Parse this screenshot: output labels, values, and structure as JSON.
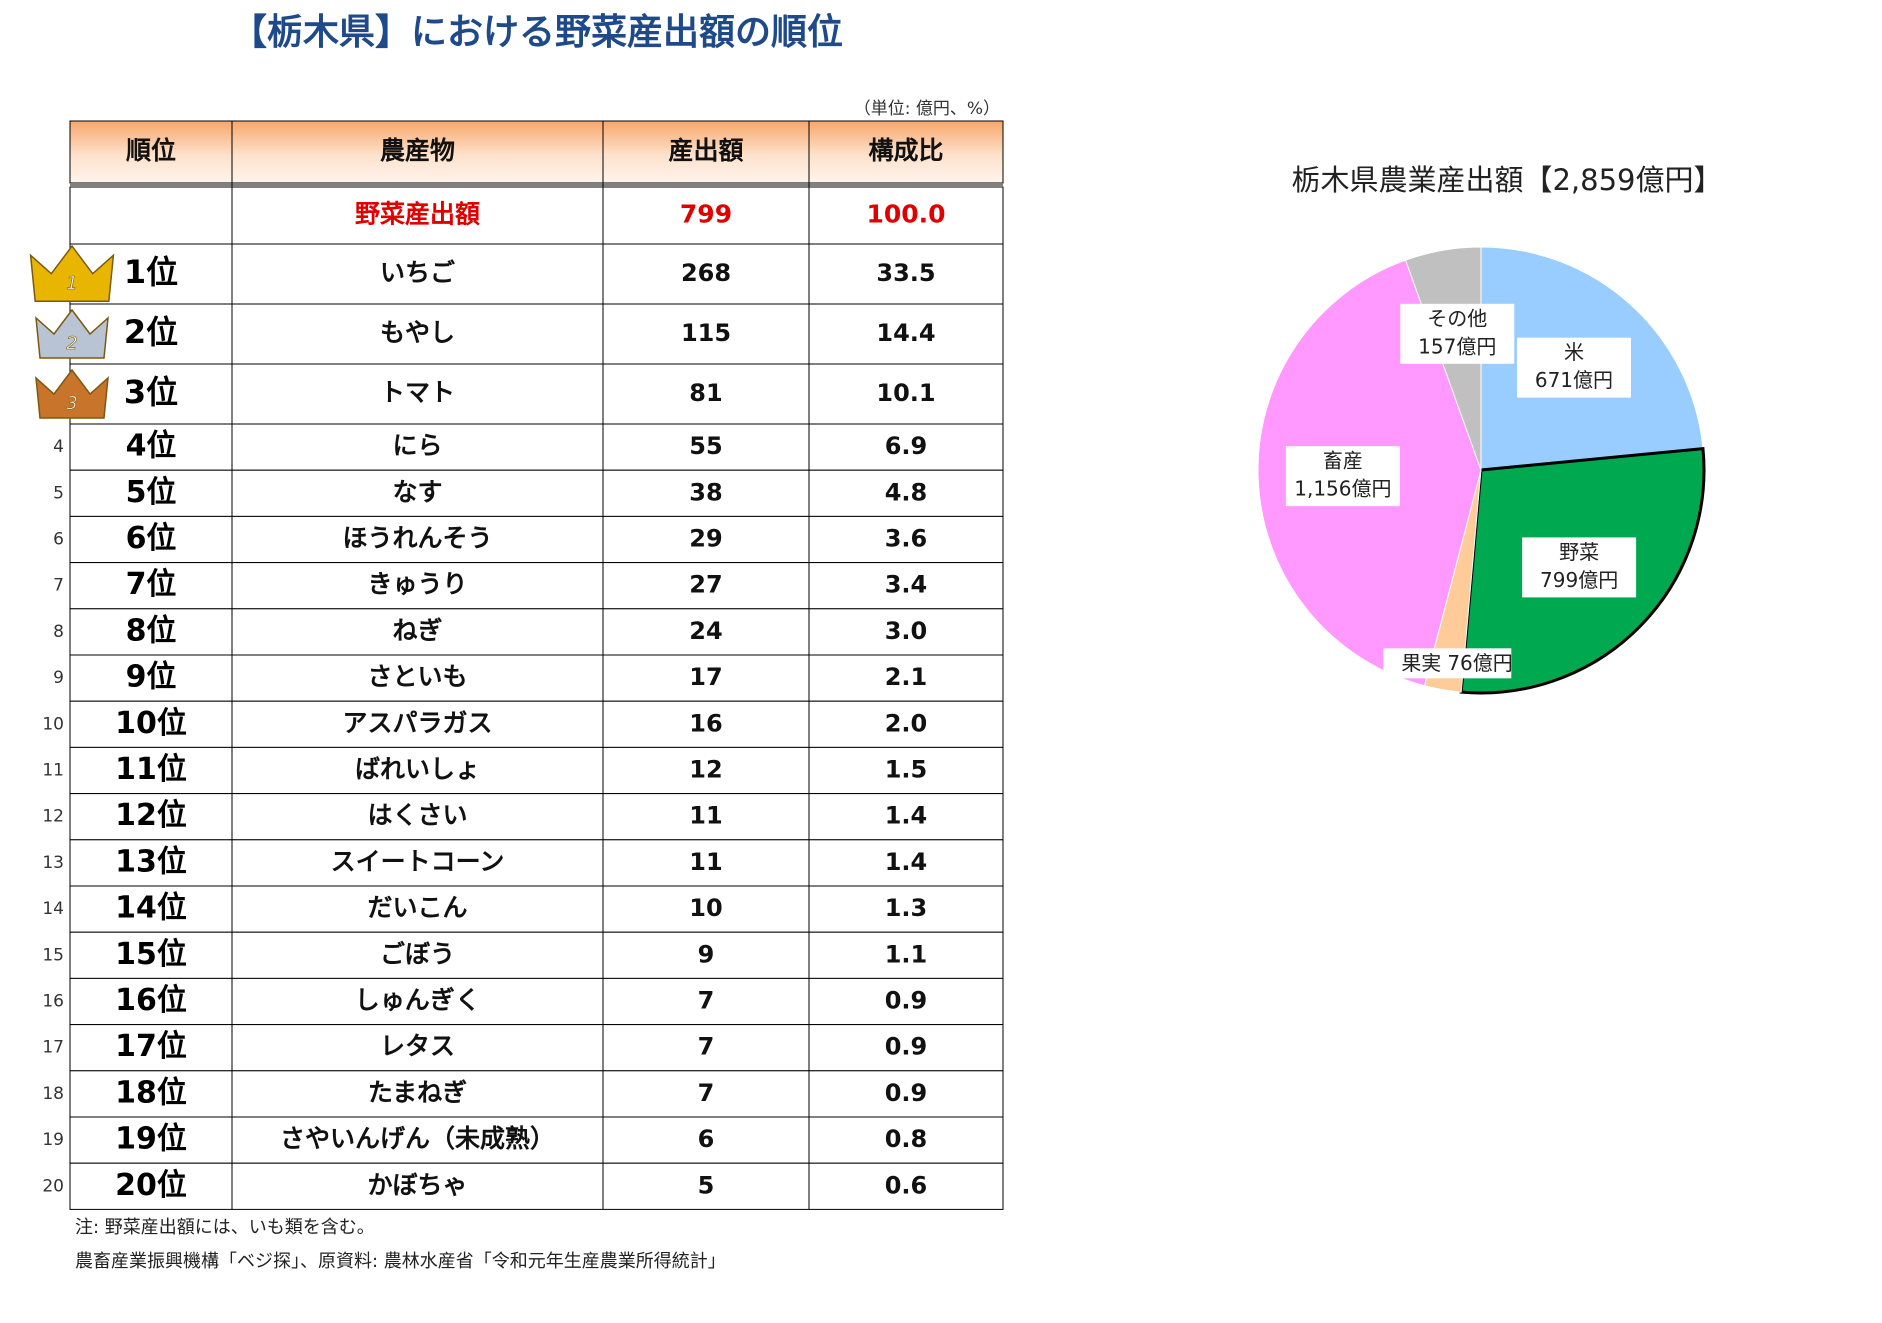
{
  "header": {
    "title": "【栃木県】における野菜産出額の順位",
    "unit": "（単位: 億円、%）"
  },
  "table": {
    "columns": [
      "順位",
      "農産物",
      "産出額",
      "構成比"
    ],
    "total": {
      "crop": "野菜産出額",
      "amount": "799",
      "share": "100.0"
    },
    "rows": [
      {
        "marker": "1",
        "rank": "1位",
        "crop": "いちご",
        "amount": "268",
        "share": "33.5"
      },
      {
        "marker": "2",
        "rank": "2位",
        "crop": "もやし",
        "amount": "115",
        "share": "14.4"
      },
      {
        "marker": "3",
        "rank": "3位",
        "crop": "トマト",
        "amount": "81",
        "share": "10.1"
      },
      {
        "marker": "4",
        "rank": "4位",
        "crop": "にら",
        "amount": "55",
        "share": "6.9"
      },
      {
        "marker": "5",
        "rank": "5位",
        "crop": "なす",
        "amount": "38",
        "share": "4.8"
      },
      {
        "marker": "6",
        "rank": "6位",
        "crop": "ほうれんそう",
        "amount": "29",
        "share": "3.6"
      },
      {
        "marker": "7",
        "rank": "7位",
        "crop": "きゅうり",
        "amount": "27",
        "share": "3.4"
      },
      {
        "marker": "8",
        "rank": "8位",
        "crop": "ねぎ",
        "amount": "24",
        "share": "3.0"
      },
      {
        "marker": "9",
        "rank": "9位",
        "crop": "さといも",
        "amount": "17",
        "share": "2.1"
      },
      {
        "marker": "10",
        "rank": "10位",
        "crop": "アスパラガス",
        "amount": "16",
        "share": "2.0"
      },
      {
        "marker": "11",
        "rank": "11位",
        "crop": "ばれいしょ",
        "amount": "12",
        "share": "1.5"
      },
      {
        "marker": "12",
        "rank": "12位",
        "crop": "はくさい",
        "amount": "11",
        "share": "1.4"
      },
      {
        "marker": "13",
        "rank": "13位",
        "crop": "スイートコーン",
        "amount": "11",
        "share": "1.4"
      },
      {
        "marker": "14",
        "rank": "14位",
        "crop": "だいこん",
        "amount": "10",
        "share": "1.3"
      },
      {
        "marker": "15",
        "rank": "15位",
        "crop": "ごぼう",
        "amount": "9",
        "share": "1.1"
      },
      {
        "marker": "16",
        "rank": "16位",
        "crop": "しゅんぎく",
        "amount": "7",
        "share": "0.9"
      },
      {
        "marker": "17",
        "rank": "17位",
        "crop": "レタス",
        "amount": "7",
        "share": "0.9"
      },
      {
        "marker": "18",
        "rank": "18位",
        "crop": "たまねぎ",
        "amount": "7",
        "share": "0.9"
      },
      {
        "marker": "19",
        "rank": "19位",
        "crop": "さやいんげん（未成熟）",
        "amount": "6",
        "share": "0.8"
      },
      {
        "marker": "20",
        "rank": "20位",
        "crop": "かぼちゃ",
        "amount": "5",
        "share": "0.6"
      }
    ]
  },
  "notes": [
    "注: 野菜産出額には、いも類を含む。",
    "農畜産業振興機構「ベジ探」、原資料: 農林水産省「令和元年生産農業所得統計」"
  ],
  "chart_data": {
    "type": "pie",
    "title": "栃木県農業産出額【2,859億円】",
    "categories": [
      "米",
      "野菜",
      "果実",
      "畜産",
      "その他"
    ],
    "values": [
      671,
      799,
      76,
      1156,
      157
    ],
    "value_labels": [
      "671億円",
      "799億円",
      "76億円",
      "1,156億円",
      "157億円"
    ],
    "colors": [
      "#99ccff",
      "#00a84f",
      "#ffcc99",
      "#ff99ff",
      "#c0c0c0"
    ]
  }
}
